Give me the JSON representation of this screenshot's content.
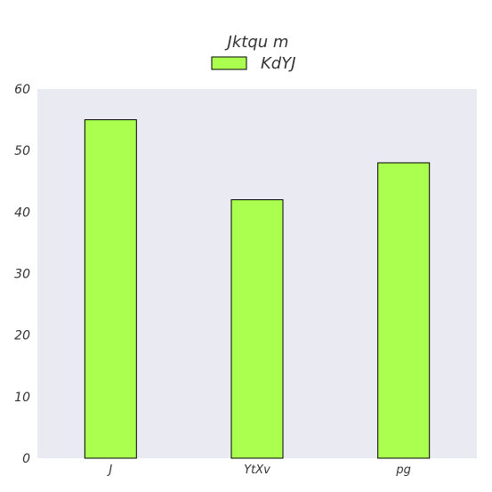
{
  "chart_data": {
    "type": "bar",
    "categories": [
      "J",
      "YtXv",
      "pg"
    ],
    "series": [
      {
        "name": "KdYJ",
        "values": [
          55,
          42,
          48
        ]
      }
    ],
    "legend_title": "Jktqu m",
    "legend_position": "top-center",
    "ylim": [
      0,
      60
    ],
    "yticks": [
      "0",
      "10",
      "20",
      "30",
      "40",
      "50",
      "60"
    ],
    "xlabel": "",
    "ylabel": "",
    "grid": false
  },
  "colors": {
    "plot_background": "#eaeaf2",
    "bar_fill": "#aaff4f",
    "bar_edge": "#000000"
  }
}
